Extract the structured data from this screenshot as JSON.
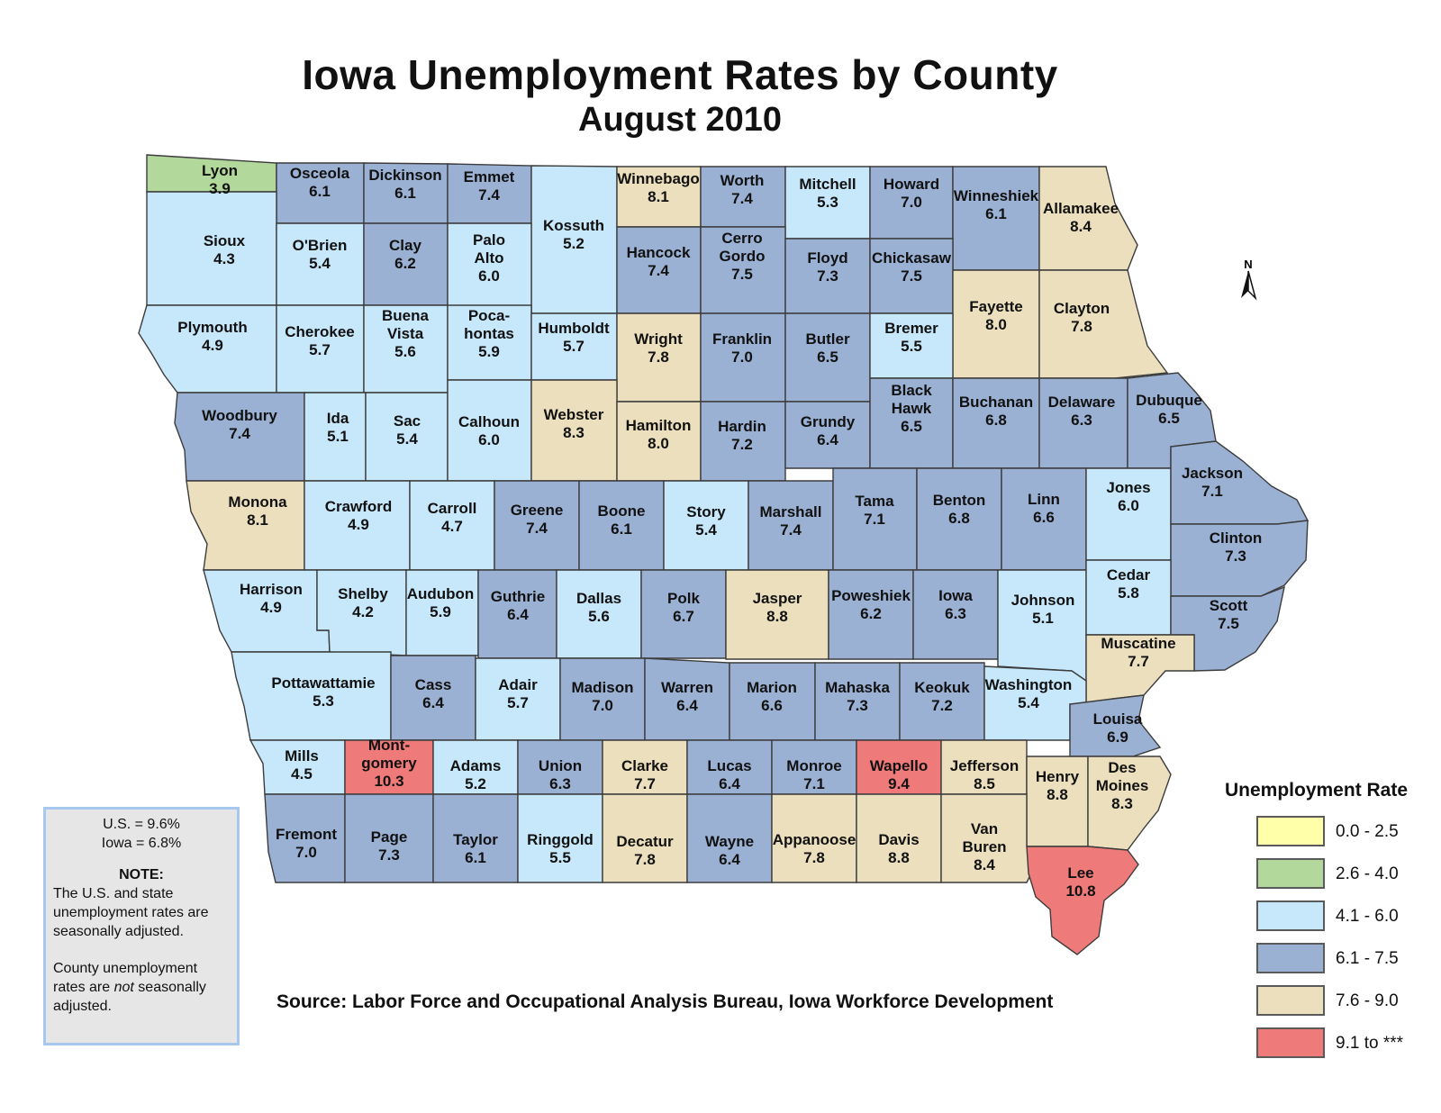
{
  "title": "Iowa Unemployment Rates by County",
  "subtitle": "August 2010",
  "colors": {
    "0.0 - 2.5": "#ffffaa",
    "2.6 - 4.0": "#b3d89c",
    "4.1 - 6.0": "#c7e8fb",
    "6.1 - 7.5": "#9ab1d4",
    "7.6 - 9.0": "#ecdfbe",
    "9.1 to ***": "#ef7a7a",
    "border": "#3c3c3c"
  },
  "counties": [
    {
      "name": "Lyon",
      "rate": "3.9"
    },
    {
      "name": "Osceola",
      "rate": "6.1"
    },
    {
      "name": "Dickinson",
      "rate": "6.1"
    },
    {
      "name": "Emmet",
      "rate": "7.4"
    },
    {
      "name": "Kossuth",
      "rate": "5.2"
    },
    {
      "name": "Winnebago",
      "rate": "8.1"
    },
    {
      "name": "Worth",
      "rate": "7.4"
    },
    {
      "name": "Mitchell",
      "rate": "5.3"
    },
    {
      "name": "Howard",
      "rate": "7.0"
    },
    {
      "name": "Winneshiek",
      "rate": "6.1"
    },
    {
      "name": "Allamakee",
      "rate": "8.4"
    },
    {
      "name": "Sioux",
      "rate": "4.3"
    },
    {
      "name": "O'Brien",
      "rate": "5.4"
    },
    {
      "name": "Clay",
      "rate": "6.2"
    },
    {
      "name": "Palo Alto",
      "rate": "6.0"
    },
    {
      "name": "Hancock",
      "rate": "7.4"
    },
    {
      "name": "Cerro Gordo",
      "rate": "7.5"
    },
    {
      "name": "Floyd",
      "rate": "7.3"
    },
    {
      "name": "Chickasaw",
      "rate": "7.5"
    },
    {
      "name": "Fayette",
      "rate": "8.0"
    },
    {
      "name": "Clayton",
      "rate": "7.8"
    },
    {
      "name": "Plymouth",
      "rate": "4.9"
    },
    {
      "name": "Cherokee",
      "rate": "5.7"
    },
    {
      "name": "Buena Vista",
      "rate": "5.6"
    },
    {
      "name": "Poca- hontas",
      "rate": "5.9"
    },
    {
      "name": "Humboldt",
      "rate": "5.7"
    },
    {
      "name": "Wright",
      "rate": "7.8"
    },
    {
      "name": "Franklin",
      "rate": "7.0"
    },
    {
      "name": "Butler",
      "rate": "6.5"
    },
    {
      "name": "Bremer",
      "rate": "5.5"
    },
    {
      "name": "Woodbury",
      "rate": "7.4"
    },
    {
      "name": "Ida",
      "rate": "5.1"
    },
    {
      "name": "Sac",
      "rate": "5.4"
    },
    {
      "name": "Calhoun",
      "rate": "6.0"
    },
    {
      "name": "Webster",
      "rate": "8.3"
    },
    {
      "name": "Hamilton",
      "rate": "8.0"
    },
    {
      "name": "Hardin",
      "rate": "7.2"
    },
    {
      "name": "Grundy",
      "rate": "6.4"
    },
    {
      "name": "Black Hawk",
      "rate": "6.5"
    },
    {
      "name": "Buchanan",
      "rate": "6.8"
    },
    {
      "name": "Delaware",
      "rate": "6.3"
    },
    {
      "name": "Dubuque",
      "rate": "6.5"
    },
    {
      "name": "Monona",
      "rate": "8.1"
    },
    {
      "name": "Crawford",
      "rate": "4.9"
    },
    {
      "name": "Carroll",
      "rate": "4.7"
    },
    {
      "name": "Greene",
      "rate": "7.4"
    },
    {
      "name": "Boone",
      "rate": "6.1"
    },
    {
      "name": "Story",
      "rate": "5.4"
    },
    {
      "name": "Marshall",
      "rate": "7.4"
    },
    {
      "name": "Tama",
      "rate": "7.1"
    },
    {
      "name": "Benton",
      "rate": "6.8"
    },
    {
      "name": "Linn",
      "rate": "6.6"
    },
    {
      "name": "Jones",
      "rate": "6.0"
    },
    {
      "name": "Jackson",
      "rate": "7.1"
    },
    {
      "name": "Clinton",
      "rate": "7.3"
    },
    {
      "name": "Harrison",
      "rate": "4.9"
    },
    {
      "name": "Shelby",
      "rate": "4.2"
    },
    {
      "name": "Audubon",
      "rate": "5.9"
    },
    {
      "name": "Guthrie",
      "rate": "6.4"
    },
    {
      "name": "Dallas",
      "rate": "5.6"
    },
    {
      "name": "Polk",
      "rate": "6.7"
    },
    {
      "name": "Jasper",
      "rate": "8.8"
    },
    {
      "name": "Poweshiek",
      "rate": "6.2"
    },
    {
      "name": "Iowa",
      "rate": "6.3"
    },
    {
      "name": "Johnson",
      "rate": "5.1"
    },
    {
      "name": "Cedar",
      "rate": "5.8"
    },
    {
      "name": "Scott",
      "rate": "7.5"
    },
    {
      "name": "Muscatine",
      "rate": "7.7"
    },
    {
      "name": "Pottawattamie",
      "rate": "5.3"
    },
    {
      "name": "Cass",
      "rate": "6.4"
    },
    {
      "name": "Adair",
      "rate": "5.7"
    },
    {
      "name": "Madison",
      "rate": "7.0"
    },
    {
      "name": "Warren",
      "rate": "6.4"
    },
    {
      "name": "Marion",
      "rate": "6.6"
    },
    {
      "name": "Mahaska",
      "rate": "7.3"
    },
    {
      "name": "Keokuk",
      "rate": "7.2"
    },
    {
      "name": "Washington",
      "rate": "5.4"
    },
    {
      "name": "Louisa",
      "rate": "6.9"
    },
    {
      "name": "Mills",
      "rate": "4.5"
    },
    {
      "name": "Mont- gomery",
      "rate": "10.3"
    },
    {
      "name": "Adams",
      "rate": "5.2"
    },
    {
      "name": "Union",
      "rate": "6.3"
    },
    {
      "name": "Clarke",
      "rate": "7.7"
    },
    {
      "name": "Lucas",
      "rate": "6.4"
    },
    {
      "name": "Monroe",
      "rate": "7.1"
    },
    {
      "name": "Wapello",
      "rate": "9.4"
    },
    {
      "name": "Jefferson",
      "rate": "8.5"
    },
    {
      "name": "Henry",
      "rate": "8.8"
    },
    {
      "name": "Des Moines",
      "rate": "8.3"
    },
    {
      "name": "Fremont",
      "rate": "7.0"
    },
    {
      "name": "Page",
      "rate": "7.3"
    },
    {
      "name": "Taylor",
      "rate": "6.1"
    },
    {
      "name": "Ringgold",
      "rate": "5.5"
    },
    {
      "name": "Decatur",
      "rate": "7.8"
    },
    {
      "name": "Wayne",
      "rate": "6.4"
    },
    {
      "name": "Appanoose",
      "rate": "7.8"
    },
    {
      "name": "Davis",
      "rate": "8.8"
    },
    {
      "name": "Van Buren",
      "rate": "8.4"
    },
    {
      "name": "Lee",
      "rate": "10.8"
    }
  ],
  "note": {
    "us_rate": "U.S. = 9.6%",
    "iowa_rate": "Iowa = 6.8%",
    "heading": "NOTE:",
    "p1": "The U.S. and state unemployment rates are seasonally adjusted.",
    "p2_before": "County unemployment rates are ",
    "p2_emph": "not",
    "p2_after": " seasonally adjusted."
  },
  "source": "Source: Labor Force and Occupational Analysis Bureau, Iowa Workforce Development",
  "legend": {
    "title": "Unemployment Rate",
    "items": [
      {
        "label": "0.0 - 2.5"
      },
      {
        "label": "2.6 - 4.0"
      },
      {
        "label": "4.1 - 6.0"
      },
      {
        "label": "6.1 - 7.5"
      },
      {
        "label": "7.6 - 9.0"
      },
      {
        "label": "9.1 to ***"
      }
    ]
  },
  "north_label": "N"
}
